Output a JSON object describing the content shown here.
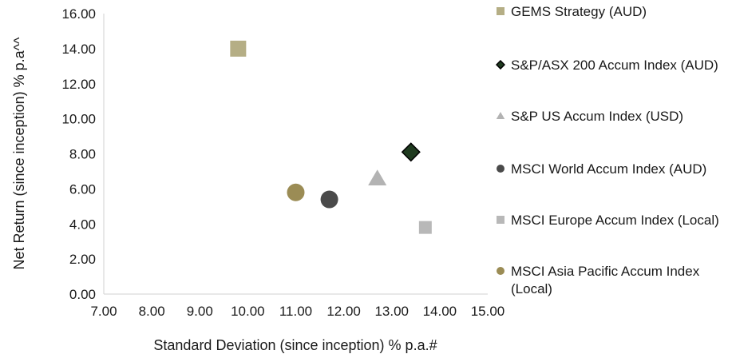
{
  "chart_data": {
    "type": "scatter",
    "xlabel": "Standard Deviation (since inception) % p.a.#",
    "ylabel": "Net Return (since inception) % p.a^^",
    "xlim": [
      7,
      15
    ],
    "ylim": [
      0,
      16
    ],
    "x_ticks": [
      "7.00",
      "8.00",
      "9.00",
      "10.00",
      "11.00",
      "12.00",
      "13.00",
      "14.00",
      "15.00"
    ],
    "y_ticks": [
      "0.00",
      "2.00",
      "4.00",
      "6.00",
      "8.00",
      "10.00",
      "12.00",
      "14.00",
      "16.00"
    ],
    "grid": false,
    "legend_position": "right",
    "series": [
      {
        "name": "GEMS Strategy (AUD)",
        "marker": "square",
        "color": "#b5ae85",
        "x": 9.8,
        "y": 14.0
      },
      {
        "name": "S&P/ASX 200 Accum Index (AUD)",
        "marker": "diamond",
        "color": "#1f3a1f",
        "x": 13.4,
        "y": 8.1
      },
      {
        "name": "S&P US Accum Index (USD)",
        "marker": "triangle",
        "color": "#b3b3b3",
        "x": 12.7,
        "y": 6.6
      },
      {
        "name": "MSCI World Accum Index (AUD)",
        "marker": "circle",
        "color": "#4a4a4a",
        "x": 11.7,
        "y": 5.4
      },
      {
        "name": "MSCI Europe Accum Index (Local)",
        "marker": "square",
        "color": "#b8b8b8",
        "x": 13.7,
        "y": 3.8
      },
      {
        "name": "MSCI Asia Pacific Accum Index (Local)",
        "marker": "circle",
        "color": "#9b8c55",
        "x": 11.0,
        "y": 5.8
      }
    ]
  }
}
